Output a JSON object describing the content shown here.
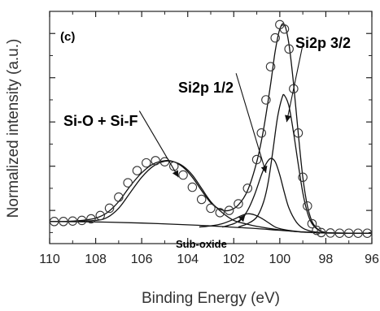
{
  "chart_data": {
    "type": "scatter",
    "panel_label": "(c)",
    "xlabel": "Binding Energy (eV)",
    "ylabel": "Normalized intensity (a.u.)",
    "xlim": [
      110,
      96
    ],
    "ylim": [
      0,
      1.05
    ],
    "x_ticks": [
      110,
      108,
      106,
      104,
      102,
      100,
      98,
      96
    ],
    "x_tick_labels": [
      "110",
      "108",
      "106",
      "104",
      "102",
      "100",
      "98",
      "96"
    ],
    "y_tick_values": [
      0.15,
      0.35,
      0.55,
      0.75,
      0.95
    ],
    "annotations": [
      {
        "text": "Si-O + Si-F",
        "x": 104.6,
        "y": 0.36
      },
      {
        "text": "Si2p 1/2",
        "x": 100.4,
        "y": 0.42
      },
      {
        "text": "Si2p 3/2",
        "x": 99.8,
        "y": 0.66
      },
      {
        "text": "Sub-oxide",
        "x": 101.8,
        "y": 0.11
      }
    ],
    "series": [
      {
        "style": "open-circles",
        "x": [
          109.8,
          109.4,
          109.0,
          108.6,
          108.2,
          107.8,
          107.4,
          107.0,
          106.6,
          106.2,
          105.8,
          105.4,
          105.0,
          104.6,
          104.2,
          103.8,
          103.4,
          103.0,
          102.6,
          102.2,
          101.8,
          101.4,
          101.0,
          100.8,
          100.6,
          100.4,
          100.2,
          100.0,
          99.8,
          99.6,
          99.4,
          99.2,
          99.0,
          98.8,
          98.6,
          98.4,
          98.2,
          97.8,
          97.4,
          97.0,
          96.6,
          96.2
        ],
        "y": [
          0.1,
          0.1,
          0.102,
          0.105,
          0.112,
          0.127,
          0.16,
          0.21,
          0.275,
          0.33,
          0.365,
          0.375,
          0.37,
          0.35,
          0.31,
          0.255,
          0.2,
          0.16,
          0.14,
          0.15,
          0.18,
          0.25,
          0.38,
          0.5,
          0.65,
          0.8,
          0.93,
          0.99,
          0.97,
          0.88,
          0.7,
          0.5,
          0.3,
          0.17,
          0.09,
          0.06,
          0.05,
          0.048,
          0.047,
          0.047,
          0.047,
          0.047
        ]
      },
      {
        "style": "envelope-line",
        "x": [
          110,
          109.5,
          109,
          108.5,
          108,
          107.5,
          107,
          106.5,
          106,
          105.5,
          105,
          104.6,
          104.2,
          103.8,
          103.4,
          103,
          102.6,
          102.2,
          101.8,
          101.4,
          101,
          100.7,
          100.4,
          100.2,
          100,
          99.8,
          99.6,
          99.4,
          99.2,
          99,
          98.8,
          98.6,
          98.4,
          98.2,
          98,
          97.5,
          97,
          96.5,
          96
        ],
        "y": [
          0.1,
          0.1,
          0.102,
          0.106,
          0.115,
          0.14,
          0.19,
          0.26,
          0.32,
          0.36,
          0.375,
          0.37,
          0.345,
          0.3,
          0.24,
          0.185,
          0.155,
          0.15,
          0.175,
          0.24,
          0.37,
          0.52,
          0.72,
          0.87,
          0.97,
          0.99,
          0.9,
          0.72,
          0.5,
          0.3,
          0.17,
          0.1,
          0.07,
          0.055,
          0.05,
          0.048,
          0.047,
          0.047,
          0.047
        ]
      },
      {
        "style": "component-si-o-si-f",
        "x": [
          109,
          108,
          107.5,
          107,
          106.5,
          106,
          105.5,
          105,
          104.6,
          104.2,
          103.8,
          103.4,
          103,
          102.5,
          102,
          101.5,
          101,
          100,
          99,
          98,
          97,
          96
        ],
        "y": [
          0.1,
          0.105,
          0.118,
          0.16,
          0.23,
          0.3,
          0.35,
          0.372,
          0.37,
          0.35,
          0.31,
          0.25,
          0.19,
          0.14,
          0.105,
          0.09,
          0.078,
          0.062,
          0.052,
          0.048,
          0.047,
          0.047
        ]
      },
      {
        "style": "background",
        "x": [
          110,
          108,
          106,
          104,
          103,
          102,
          101,
          100,
          99,
          98,
          97,
          96
        ],
        "y": [
          0.1,
          0.098,
          0.093,
          0.085,
          0.08,
          0.074,
          0.068,
          0.06,
          0.053,
          0.049,
          0.047,
          0.047
        ]
      },
      {
        "style": "component-sub-oxide",
        "x": [
          103.5,
          103,
          102.5,
          102,
          101.7,
          101.4,
          101.1,
          100.8,
          100.5,
          100.2,
          99.9,
          99.5,
          99
        ],
        "y": [
          0.075,
          0.08,
          0.09,
          0.11,
          0.125,
          0.135,
          0.13,
          0.115,
          0.095,
          0.075,
          0.065,
          0.058,
          0.052
        ]
      },
      {
        "style": "component-si2p-1-2",
        "x": [
          102.5,
          102,
          101.7,
          101.4,
          101.1,
          100.8,
          100.6,
          100.4,
          100.2,
          100.0,
          99.8,
          99.6,
          99.3,
          99,
          98.6,
          98.2
        ],
        "y": [
          0.075,
          0.09,
          0.11,
          0.15,
          0.22,
          0.31,
          0.36,
          0.385,
          0.37,
          0.31,
          0.23,
          0.16,
          0.1,
          0.07,
          0.055,
          0.05
        ]
      },
      {
        "style": "component-si2p-3-2",
        "x": [
          101.8,
          101.4,
          101.0,
          100.7,
          100.5,
          100.3,
          100.1,
          99.9,
          99.8,
          99.6,
          99.4,
          99.2,
          99.0,
          98.8,
          98.6,
          98.3,
          98.0
        ],
        "y": [
          0.075,
          0.09,
          0.12,
          0.19,
          0.28,
          0.42,
          0.57,
          0.66,
          0.67,
          0.62,
          0.5,
          0.36,
          0.23,
          0.14,
          0.09,
          0.06,
          0.05
        ]
      }
    ]
  }
}
